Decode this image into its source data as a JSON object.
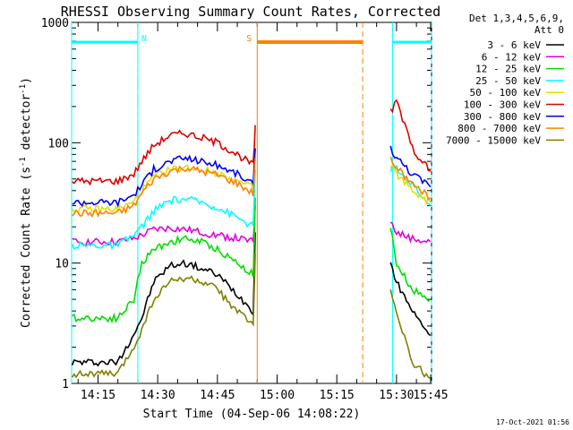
{
  "chart_data": {
    "type": "line",
    "title": "RHESSI Observing Summary Count Rates, Corrected",
    "xlabel": "Start Time (04-Sep-06 14:08:22)",
    "ylabel_main": "Corrected Count Rate (s",
    "ylabel_mid": " detector",
    "ylabel_end": ")",
    "ylabel_sup": "-1",
    "yscale": "log",
    "ylim": [
      1,
      1000
    ],
    "xlim_minutes": [
      8.37,
      98.8
    ],
    "x_ticks": [
      {
        "label": "14:15",
        "t": 15
      },
      {
        "label": "14:30",
        "t": 30
      },
      {
        "label": "14:45",
        "t": 45
      },
      {
        "label": "15:00",
        "t": 60
      },
      {
        "label": "15:15",
        "t": 75
      },
      {
        "label": "15:30",
        "t": 90
      },
      {
        "label": "15:45",
        "t": 105
      }
    ],
    "y_ticks": [
      {
        "label": "1",
        "v": 1
      },
      {
        "label": "10",
        "v": 10
      },
      {
        "label": "100",
        "v": 100
      },
      {
        "label": "1000",
        "v": 1000
      }
    ],
    "legend_header": [
      "Det 1,3,4,5,6,9,",
      "Att 0"
    ],
    "legend_placement": "top-right outside",
    "timestamp": "17-Oct-2021 01:56",
    "data_gap_minutes": [
      54.8,
      88.2
    ],
    "series": [
      {
        "name": "3 - 6 keV",
        "color": "#000000",
        "t": [
          8.5,
          20,
          24,
          26,
          29,
          33,
          37,
          41,
          45,
          50,
          54,
          54.5,
          88.5,
          90,
          94,
          98.5
        ],
        "v": [
          1.5,
          1.5,
          2.6,
          3.5,
          7,
          9.5,
          10,
          9,
          8,
          5.5,
          4,
          18,
          10,
          7,
          4,
          2.5
        ]
      },
      {
        "name": "6 - 12 keV",
        "color": "#e000e0",
        "t": [
          8.5,
          20,
          24,
          26,
          29,
          33,
          37,
          41,
          45,
          50,
          54,
          54.5,
          88.5,
          90,
          94,
          98.5
        ],
        "v": [
          15,
          15,
          16,
          17,
          19,
          19.5,
          19,
          18,
          17,
          16,
          15,
          30,
          22,
          18,
          16,
          15
        ]
      },
      {
        "name": "12 - 25 keV",
        "color": "#00dd00",
        "t": [
          8.5,
          20,
          24,
          26,
          29,
          33,
          37,
          41,
          45,
          50,
          54,
          54.5,
          88.5,
          90,
          94,
          98.5
        ],
        "v": [
          3.5,
          3.5,
          5,
          10,
          13,
          15,
          16,
          15,
          13,
          10,
          8,
          35,
          20,
          10,
          6,
          5
        ]
      },
      {
        "name": "25 - 50 keV",
        "color": "#00ffff",
        "t": [
          8.5,
          20,
          24,
          26,
          29,
          33,
          37,
          41,
          45,
          50,
          54,
          54.5,
          88.5,
          90,
          94,
          98.5
        ],
        "v": [
          14,
          14,
          17,
          20,
          27,
          33,
          34,
          32,
          29,
          24,
          20,
          60,
          60,
          60,
          45,
          30
        ]
      },
      {
        "name": "50 - 100 keV",
        "color": "#e0e000",
        "t": [
          8.5,
          20,
          24,
          26,
          29,
          33,
          37,
          41,
          45,
          50,
          54,
          54.5,
          88.5,
          90,
          94,
          98.5
        ],
        "v": [
          28,
          28,
          32,
          40,
          52,
          60,
          62,
          60,
          56,
          48,
          42,
          90,
          65,
          55,
          40,
          32
        ]
      },
      {
        "name": "100 - 300 keV",
        "color": "#dd0000",
        "t": [
          8.5,
          20,
          24,
          26,
          29,
          33,
          37,
          41,
          45,
          50,
          54,
          54.5,
          88.5,
          90,
          94,
          98.5
        ],
        "v": [
          48,
          48,
          55,
          70,
          95,
          115,
          120,
          110,
          100,
          80,
          65,
          140,
          180,
          220,
          90,
          58
        ]
      },
      {
        "name": "300 - 800 keV",
        "color": "#0000ee",
        "t": [
          8.5,
          20,
          24,
          26,
          29,
          33,
          37,
          41,
          45,
          50,
          54,
          54.5,
          88.5,
          90,
          94,
          98.5
        ],
        "v": [
          32,
          32,
          37,
          45,
          60,
          70,
          75,
          70,
          65,
          55,
          45,
          90,
          90,
          75,
          55,
          43
        ]
      },
      {
        "name": "800 - 7000 keV",
        "color": "#ff8000",
        "t": [
          8.5,
          20,
          24,
          26,
          29,
          33,
          37,
          41,
          45,
          50,
          54,
          54.5,
          88.5,
          90,
          94,
          98.5
        ],
        "v": [
          26,
          26,
          30,
          38,
          50,
          58,
          62,
          58,
          54,
          46,
          38,
          75,
          75,
          62,
          45,
          35
        ]
      },
      {
        "name": "7000 - 15000 keV",
        "color": "#808000",
        "t": [
          8.5,
          20,
          24,
          26,
          29,
          33,
          37,
          41,
          45,
          50,
          54,
          54.5,
          88.5,
          90,
          94,
          98.5
        ],
        "v": [
          1.2,
          1.2,
          2,
          2.8,
          5,
          7,
          7.5,
          7,
          6,
          4,
          3,
          12,
          6,
          4,
          1.5,
          1.1
        ]
      }
    ],
    "flag_lines": [
      {
        "label": "",
        "color": "#00ffff",
        "start": 8.37,
        "end": 25.0
      },
      {
        "label": "N",
        "color": "#00ffff",
        "start": 25.0,
        "end": 25.0
      },
      {
        "label": "S",
        "color": "#ff8000",
        "start": 55.0,
        "end": 81.5
      },
      {
        "label": "",
        "color": "#00ffff",
        "start": 89.0,
        "end": 98.8
      }
    ]
  }
}
